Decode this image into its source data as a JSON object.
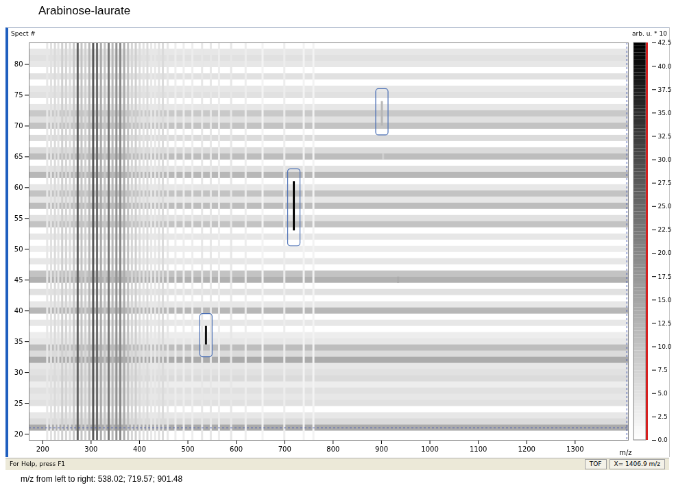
{
  "chart_data": {
    "type": "heatmap",
    "title": "Arabinose-laurate",
    "y_label": "Spect #",
    "x_label": "m/z",
    "xlim": [
      172,
      1410
    ],
    "xticks": [
      200,
      300,
      400,
      500,
      600,
      700,
      800,
      900,
      1000,
      1100,
      1200,
      1300
    ],
    "ylim": [
      19,
      83.5
    ],
    "yticks": [
      20,
      25,
      30,
      35,
      40,
      45,
      50,
      55,
      60,
      65,
      70,
      75,
      80
    ],
    "grid": false,
    "color_bar": {
      "label": "arb. u. * 10",
      "range": [
        0,
        42.5
      ],
      "ticks": [
        {
          "value": 0,
          "label": "0.0"
        },
        2.5,
        {
          "value": 5,
          "label": "5.0"
        },
        7.5,
        {
          "value": 10,
          "label": "10.0"
        },
        12.5,
        {
          "value": 15,
          "label": "15.0"
        },
        17.5,
        {
          "value": 20,
          "label": "20.0"
        },
        22.5,
        {
          "value": 25,
          "label": "25.0"
        },
        27.5,
        {
          "value": 30,
          "label": "30.0"
        },
        32.5,
        {
          "value": 35,
          "label": "35.0"
        },
        37.5,
        {
          "value": 40,
          "label": "40.0"
        },
        42.5
      ]
    },
    "peak_columns": {
      "mz": [
        210,
        218,
        226,
        233,
        241,
        249,
        257,
        265,
        273,
        281,
        289,
        297,
        305,
        313,
        321,
        329,
        337,
        345,
        353,
        361,
        369,
        377,
        385,
        393,
        401,
        409,
        417,
        425,
        433,
        441,
        449,
        459,
        475,
        492,
        510,
        530,
        548,
        565,
        590,
        620,
        655,
        700,
        740,
        760
      ],
      "values": [
        4,
        5,
        6,
        5,
        8,
        7,
        6,
        9,
        26,
        10,
        8,
        12,
        28,
        24,
        14,
        10,
        22,
        12,
        18,
        20,
        14,
        10,
        7,
        8,
        6,
        5,
        6,
        4,
        4,
        5,
        6,
        4,
        3,
        3,
        3,
        4,
        4,
        3,
        4,
        3,
        2,
        3,
        2,
        2
      ]
    },
    "spectrum_rows": {
      "spect": [
        21,
        22,
        23,
        25,
        26,
        27,
        28,
        29,
        30,
        31,
        32,
        33,
        34,
        35,
        36,
        38,
        40,
        41,
        43,
        45,
        46,
        48,
        50,
        52,
        54,
        55,
        57,
        58,
        59,
        60,
        62,
        63,
        65,
        66,
        68,
        70,
        71,
        72,
        73,
        75,
        76,
        78,
        80,
        81,
        82
      ],
      "values": [
        14,
        6,
        4,
        5,
        4,
        5,
        3,
        6,
        5,
        4,
        14,
        6,
        11,
        4,
        3,
        4,
        12,
        4,
        5,
        13,
        10,
        4,
        3,
        4,
        10,
        5,
        11,
        4,
        10,
        4,
        12,
        5,
        11,
        6,
        6,
        10,
        5,
        9,
        4,
        5,
        4,
        5,
        4,
        5,
        4
      ]
    },
    "spots": [
      {
        "mz": 538.02,
        "spect_range": [
          34.5,
          37.5
        ],
        "value": 40
      },
      {
        "mz": 719.57,
        "spect_range": [
          53,
          61
        ],
        "value": 42
      },
      {
        "mz": 901.48,
        "spect_range": [
          70,
          74
        ],
        "value": 12
      },
      {
        "mz": 935,
        "spect_range": [
          44.5,
          45.5
        ],
        "value": 14
      },
      {
        "mz": 904,
        "spect_range": [
          64.5,
          65.5
        ],
        "value": 8
      }
    ],
    "annotations": [
      {
        "mz": 538.02,
        "spect_range": [
          32.5,
          39.5
        ]
      },
      {
        "mz": 719.57,
        "spect_range": [
          50.5,
          63
        ]
      },
      {
        "mz": 901.48,
        "spect_range": [
          68.5,
          76
        ]
      }
    ],
    "cursor": {
      "mz": 1406.9,
      "spect": 21
    },
    "status_bar": [
      "For Help, press F1",
      "TOF",
      "X= 1406.9 m/z"
    ],
    "caption": "m/z from left to right: 538.02; 719.57; 901.48"
  }
}
